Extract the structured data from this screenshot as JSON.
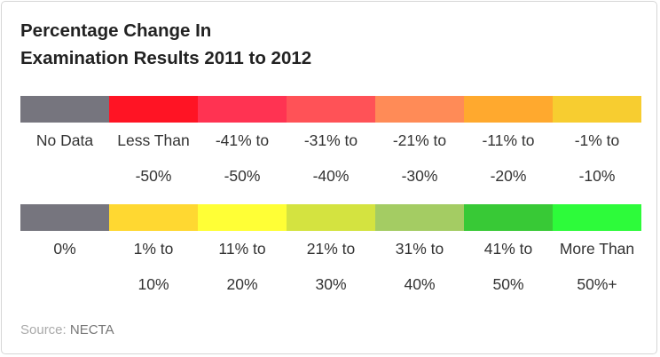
{
  "title_line1": "Percentage Change In",
  "title_line2": "Examination Results 2011 to 2012",
  "legend_row1": [
    {
      "color": "#76757e",
      "line1": "No Data",
      "line2": ""
    },
    {
      "color": "#ff1424",
      "line1": "Less Than",
      "line2": "-50%"
    },
    {
      "color": "#ff3352",
      "line1": "-41% to",
      "line2": "-50%"
    },
    {
      "color": "#ff5257",
      "line1": "-31% to",
      "line2": "-40%"
    },
    {
      "color": "#ff8b57",
      "line1": "-21% to",
      "line2": "-30%"
    },
    {
      "color": "#ffa92e",
      "line1": "-11% to",
      "line2": "-20%"
    },
    {
      "color": "#f7cd30",
      "line1": "-1% to",
      "line2": "-10%"
    }
  ],
  "legend_row2": [
    {
      "color": "#76757e",
      "line1": "0%",
      "line2": ""
    },
    {
      "color": "#ffd831",
      "line1": "1% to",
      "line2": "10%"
    },
    {
      "color": "#ffff36",
      "line1": "11% to",
      "line2": "20%"
    },
    {
      "color": "#d4e340",
      "line1": "21% to",
      "line2": "30%"
    },
    {
      "color": "#a4cc63",
      "line1": "31% to",
      "line2": "40%"
    },
    {
      "color": "#38c936",
      "line1": "41% to",
      "line2": "50%"
    },
    {
      "color": "#2dfb3a",
      "line1": "More Than",
      "line2": "50%+"
    }
  ],
  "source_label": "Source:",
  "source_value": "NECTA"
}
